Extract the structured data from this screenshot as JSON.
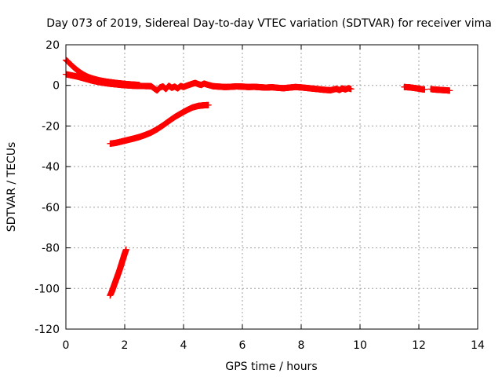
{
  "chart_data": {
    "type": "scatter",
    "title": "Day 073 of 2019, Sidereal Day-to-day VTEC variation (SDTVAR) for receiver vima",
    "xlabel": "GPS time / hours",
    "ylabel": "SDTVAR / TECUs",
    "xlim": [
      0,
      14
    ],
    "ylim": [
      -120,
      20
    ],
    "xticks": [
      0,
      2,
      4,
      6,
      8,
      10,
      12,
      14
    ],
    "yticks": [
      20,
      0,
      -20,
      -40,
      -60,
      -80,
      -100,
      -120
    ],
    "grid": true,
    "marker_color": "#ff0000",
    "series": [
      {
        "points": [
          [
            0.0,
            12.5
          ],
          [
            0.05,
            12.0
          ],
          [
            0.1,
            11.2
          ],
          [
            0.2,
            9.8
          ],
          [
            0.3,
            8.5
          ],
          [
            0.4,
            7.3
          ],
          [
            0.5,
            6.2
          ],
          [
            0.6,
            5.3
          ],
          [
            0.7,
            4.5
          ],
          [
            0.8,
            3.9
          ],
          [
            0.9,
            3.4
          ],
          [
            1.0,
            3.0
          ],
          [
            1.1,
            2.6
          ],
          [
            1.2,
            2.3
          ],
          [
            1.35,
            1.9
          ],
          [
            1.5,
            1.6
          ],
          [
            1.7,
            1.2
          ],
          [
            1.9,
            0.9
          ],
          [
            2.1,
            0.6
          ],
          [
            2.3,
            0.4
          ],
          [
            2.5,
            0.2
          ]
        ]
      },
      {
        "points": [
          [
            0.0,
            5.5
          ],
          [
            0.1,
            5.2
          ],
          [
            0.2,
            4.9
          ],
          [
            0.3,
            4.6
          ],
          [
            0.4,
            4.3
          ],
          [
            0.5,
            3.9
          ],
          [
            0.6,
            3.5
          ],
          [
            0.7,
            3.1
          ],
          [
            0.8,
            2.7
          ],
          [
            0.9,
            2.3
          ],
          [
            1.0,
            2.0
          ],
          [
            1.1,
            1.7
          ],
          [
            1.2,
            1.4
          ],
          [
            1.35,
            1.1
          ],
          [
            1.5,
            0.8
          ],
          [
            1.7,
            0.5
          ],
          [
            1.9,
            0.2
          ],
          [
            2.1,
            0.0
          ],
          [
            2.3,
            -0.2
          ],
          [
            2.6,
            -0.3
          ],
          [
            2.9,
            -0.4
          ],
          [
            3.0,
            -1.5
          ],
          [
            3.1,
            -2.5
          ],
          [
            3.2,
            -1.0
          ],
          [
            3.3,
            -0.5
          ],
          [
            3.4,
            -1.8
          ],
          [
            3.5,
            -0.2
          ],
          [
            3.6,
            -1.2
          ],
          [
            3.7,
            -0.6
          ],
          [
            3.8,
            -1.5
          ],
          [
            3.9,
            -0.3
          ],
          [
            4.0,
            -0.8
          ],
          [
            4.1,
            -0.2
          ],
          [
            4.2,
            0.3
          ],
          [
            4.3,
            0.8
          ],
          [
            4.4,
            1.2
          ],
          [
            4.5,
            0.6
          ],
          [
            4.6,
            0.2
          ],
          [
            4.7,
            0.9
          ],
          [
            4.8,
            0.4
          ],
          [
            4.9,
            0.0
          ],
          [
            5.0,
            -0.4
          ],
          [
            5.2,
            -0.6
          ],
          [
            5.4,
            -0.8
          ],
          [
            5.6,
            -0.7
          ],
          [
            5.8,
            -0.5
          ],
          [
            6.0,
            -0.6
          ],
          [
            6.2,
            -0.8
          ],
          [
            6.4,
            -0.7
          ],
          [
            6.6,
            -0.9
          ],
          [
            6.8,
            -1.1
          ],
          [
            7.0,
            -0.9
          ],
          [
            7.2,
            -1.2
          ],
          [
            7.4,
            -1.4
          ],
          [
            7.6,
            -1.1
          ],
          [
            7.8,
            -0.8
          ],
          [
            8.0,
            -1.0
          ],
          [
            8.2,
            -1.3
          ],
          [
            8.4,
            -1.6
          ],
          [
            8.6,
            -1.9
          ],
          [
            8.8,
            -2.2
          ],
          [
            9.0,
            -2.4
          ],
          [
            9.1,
            -2.0
          ],
          [
            9.2,
            -1.7
          ],
          [
            9.3,
            -2.3
          ],
          [
            9.4,
            -1.5
          ],
          [
            9.5,
            -2.0
          ],
          [
            9.6,
            -1.4
          ],
          [
            9.7,
            -1.8
          ]
        ]
      },
      {
        "points": [
          [
            11.5,
            -0.8
          ],
          [
            11.6,
            -0.9
          ],
          [
            11.7,
            -1.0
          ],
          [
            11.8,
            -1.2
          ],
          [
            11.9,
            -1.4
          ],
          [
            12.0,
            -1.6
          ],
          [
            12.1,
            -1.9
          ],
          [
            12.2,
            -2.0
          ]
        ]
      },
      {
        "points": [
          [
            12.4,
            -1.8
          ],
          [
            12.5,
            -2.0
          ],
          [
            12.6,
            -2.1
          ],
          [
            12.7,
            -2.2
          ],
          [
            12.8,
            -2.3
          ],
          [
            12.9,
            -2.4
          ],
          [
            13.0,
            -2.5
          ],
          [
            13.05,
            -2.6
          ]
        ]
      },
      {
        "points": [
          [
            1.5,
            -28.7
          ],
          [
            1.7,
            -28.3
          ],
          [
            1.9,
            -27.6
          ],
          [
            2.1,
            -26.9
          ],
          [
            2.3,
            -26.2
          ],
          [
            2.5,
            -25.4
          ],
          [
            2.7,
            -24.4
          ],
          [
            2.9,
            -23.2
          ],
          [
            3.1,
            -21.6
          ],
          [
            3.3,
            -19.7
          ],
          [
            3.5,
            -17.6
          ],
          [
            3.7,
            -15.6
          ],
          [
            3.9,
            -13.9
          ],
          [
            4.1,
            -12.3
          ],
          [
            4.3,
            -10.9
          ],
          [
            4.5,
            -10.1
          ],
          [
            4.7,
            -9.8
          ],
          [
            4.85,
            -9.7
          ]
        ]
      },
      {
        "points": [
          [
            1.5,
            -103.5
          ],
          [
            1.55,
            -102.0
          ],
          [
            1.6,
            -100.0
          ],
          [
            1.65,
            -98.0
          ],
          [
            1.7,
            -96.0
          ],
          [
            1.75,
            -94.0
          ],
          [
            1.8,
            -92.0
          ],
          [
            1.85,
            -89.8
          ],
          [
            1.9,
            -87.5
          ],
          [
            1.95,
            -85.2
          ],
          [
            2.0,
            -82.8
          ],
          [
            2.05,
            -80.8
          ]
        ]
      }
    ]
  }
}
